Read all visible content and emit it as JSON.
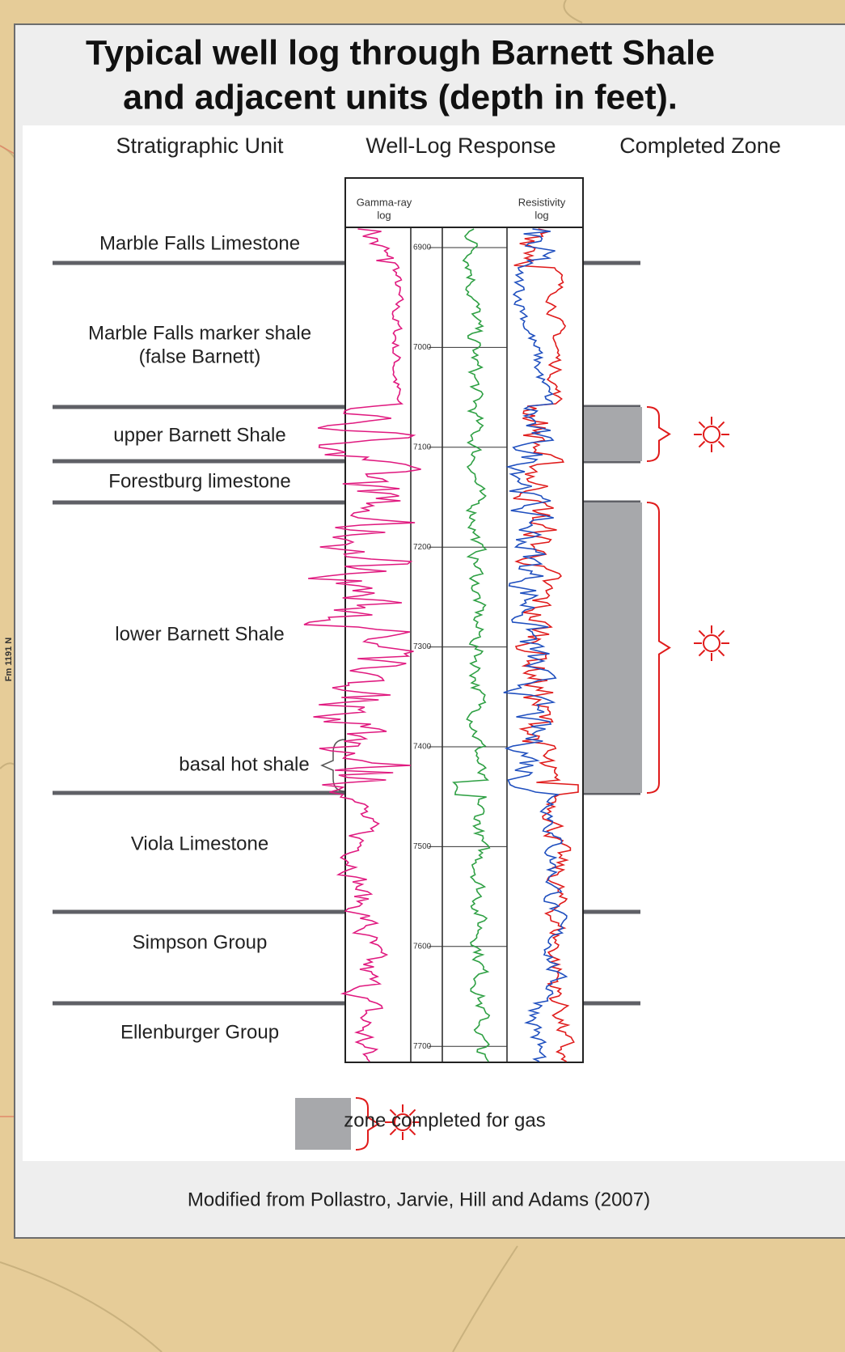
{
  "map_label": "Fm 1191 N",
  "header": {
    "title_lines": [
      "Typical well log through Barnett Shale",
      "and adjacent units (depth in feet)."
    ]
  },
  "columns": [
    "Stratigraphic Unit",
    "Well-Log Response",
    "Completed Zone"
  ],
  "log_headers": {
    "gamma": [
      "Gamma-ray",
      "log"
    ],
    "resistivity": [
      "Resistivity",
      "log"
    ]
  },
  "depth_ticks": [
    "6900",
    "7000",
    "7100",
    "7200",
    "7300",
    "7400",
    "7500",
    "7600",
    "7700"
  ],
  "units": [
    {
      "lines": [
        "Marble Falls Limestone"
      ]
    },
    {
      "lines": [
        "Marble Falls marker shale",
        "(false Barnett)"
      ]
    },
    {
      "lines": [
        "upper Barnett Shale"
      ]
    },
    {
      "lines": [
        "Forestburg limestone"
      ]
    },
    {
      "lines": [
        "lower Barnett Shale"
      ]
    },
    {
      "lines": [
        "Viola Limestone"
      ]
    },
    {
      "lines": [
        "Simpson Group"
      ]
    },
    {
      "lines": [
        "Ellenburger Group"
      ]
    }
  ],
  "basal_note": "basal hot shale",
  "legend": "zone completed for gas",
  "source": "Modified from Pollastro, Jarvie, Hill and Adams (2007)"
}
